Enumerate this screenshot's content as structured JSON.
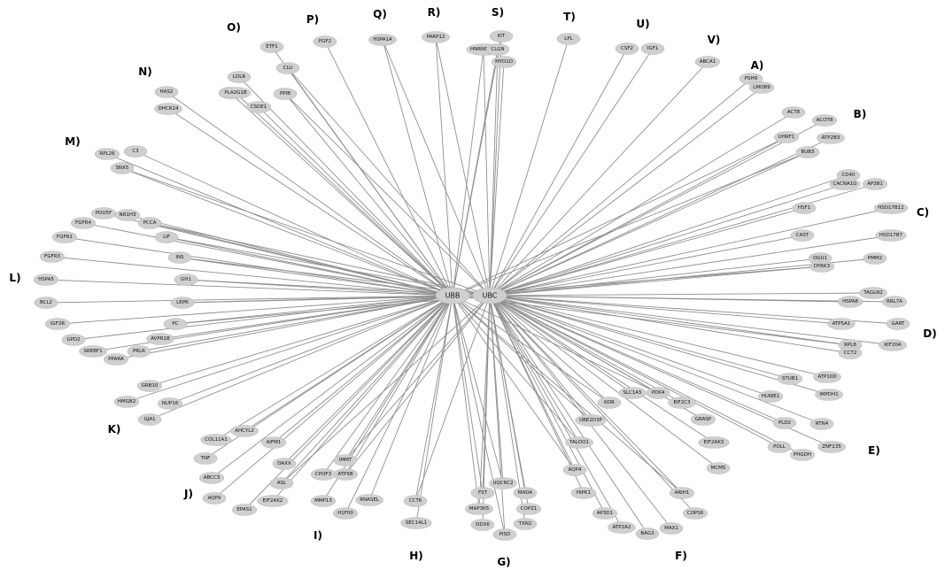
{
  "hubs": [
    "UBB",
    "UBC"
  ],
  "groups": [
    "A)",
    "B)",
    "C)",
    "D)",
    "E)",
    "F)",
    "G)",
    "H)",
    "I)",
    "J)",
    "K)",
    "L)",
    "M)",
    "N)",
    "O)",
    "P)",
    "Q)",
    "R)",
    "S)",
    "T)",
    "U)",
    "V)"
  ],
  "nodes": [
    "PSHR",
    "LMOB9",
    "ACT8",
    "ACOT8",
    "UHRF1",
    "ATP2B3",
    "BUB3",
    "CACNA1G",
    "CD40",
    "AP3B1",
    "HSF1",
    "HSD17B12",
    "CAST",
    "HSD17B7",
    "OGU1",
    "DYRK3",
    "PMM2",
    "TAGLN2",
    "RRL7A",
    "HSPA8",
    "GART",
    "ATP5A1",
    "RPL8",
    "KIF20A",
    "CCT2",
    "STUB1",
    "ATP10D",
    "HUWE1",
    "IMPDH1",
    "RTN4",
    "PLD2",
    "ZNF135",
    "POLL",
    "PHGDH",
    "KDR",
    "SLC1A5",
    "PDK4",
    "EIF2C3",
    "GRASP",
    "UBE2D3P",
    "EIF2AK3",
    "MCM5",
    "ARIH1",
    "TALDO1",
    "COPS6",
    "AQP4",
    "HIPK1",
    "AP3D1",
    "ATP2A2",
    "BAG3",
    "MAX1",
    "UQCRC2",
    "FST",
    "MADA",
    "MAP3K5",
    "COPZ1",
    "DDX6",
    "PISD",
    "TXN2",
    "CCT6",
    "SEC14L1",
    "ATP5B",
    "RNASEL",
    "H1F00",
    "IMMT",
    "CPOF3",
    "MMP13",
    "DAXX",
    "ASL",
    "EIF2AK2",
    "EPAS1",
    "AIFM1",
    "AHCYL2",
    "COL11A1",
    "TNF",
    "ABCC3",
    "AQP9",
    "GRB10",
    "HMGB2",
    "NUP16",
    "GJA1",
    "PC",
    "AVPR1B",
    "SREBF1",
    "PRLR",
    "PPARA",
    "IGF2R",
    "GPD2",
    "BCL2",
    "LEPR",
    "HSPA5",
    "GH1",
    "FGFR3",
    "INS",
    "FGFR1",
    "LIF",
    "FGFR4",
    "POU5F",
    "NR1H3",
    "PCCA",
    "RPL26",
    "C3",
    "SNX5",
    "HAS2",
    "DHCR24",
    "LDLR",
    "RPS5",
    "ETF1",
    "CLU",
    "PLA2G1B",
    "CSDE1",
    "PPIB",
    "PGF2",
    "HSPA1A",
    "PARP12",
    "KIT",
    "HNRNPUL1",
    "CLGN",
    "MYO1D",
    "LPL",
    "CSF2",
    "IGF1",
    "ABCA1"
  ]
}
